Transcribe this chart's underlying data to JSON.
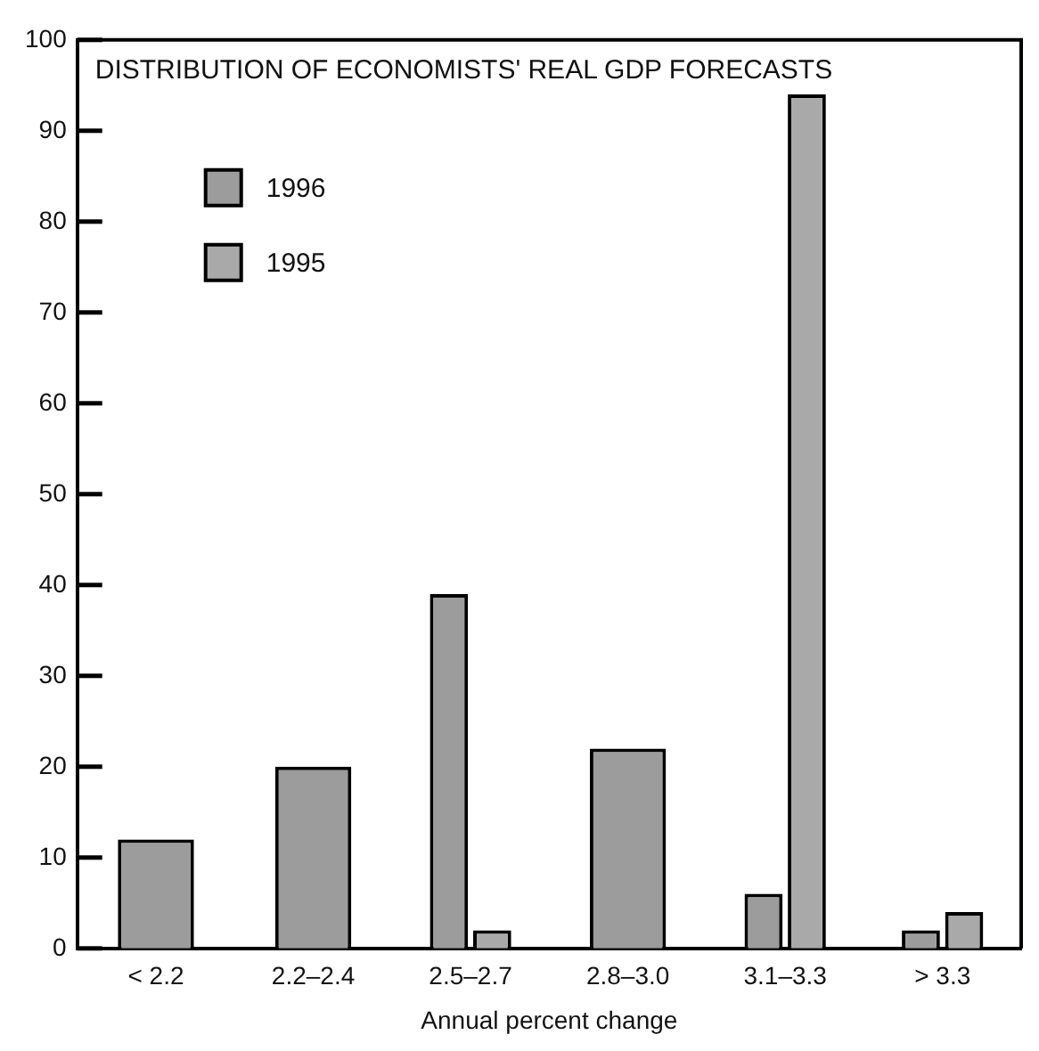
{
  "chart_data": {
    "type": "bar",
    "title": "DISTRIBUTION OF ECONOMISTS' REAL GDP FORECASTS",
    "xlabel": "Annual percent change",
    "categories": [
      "< 2.2",
      "2.2–2.4",
      "2.5–2.7",
      "2.8–3.0",
      "3.1–3.3",
      "> 3.3"
    ],
    "series": [
      {
        "name": "1996",
        "color": "#9c9c9c",
        "values": [
          12,
          20,
          39,
          22,
          6,
          2
        ]
      },
      {
        "name": "1995",
        "color": "#a9a9a9",
        "values": [
          null,
          null,
          2,
          null,
          94,
          4
        ]
      }
    ],
    "ylim": [
      0,
      100
    ],
    "yticks": [
      0,
      10,
      20,
      30,
      40,
      50,
      60,
      70,
      80,
      90,
      100
    ],
    "grid": false,
    "legend": "top left"
  }
}
